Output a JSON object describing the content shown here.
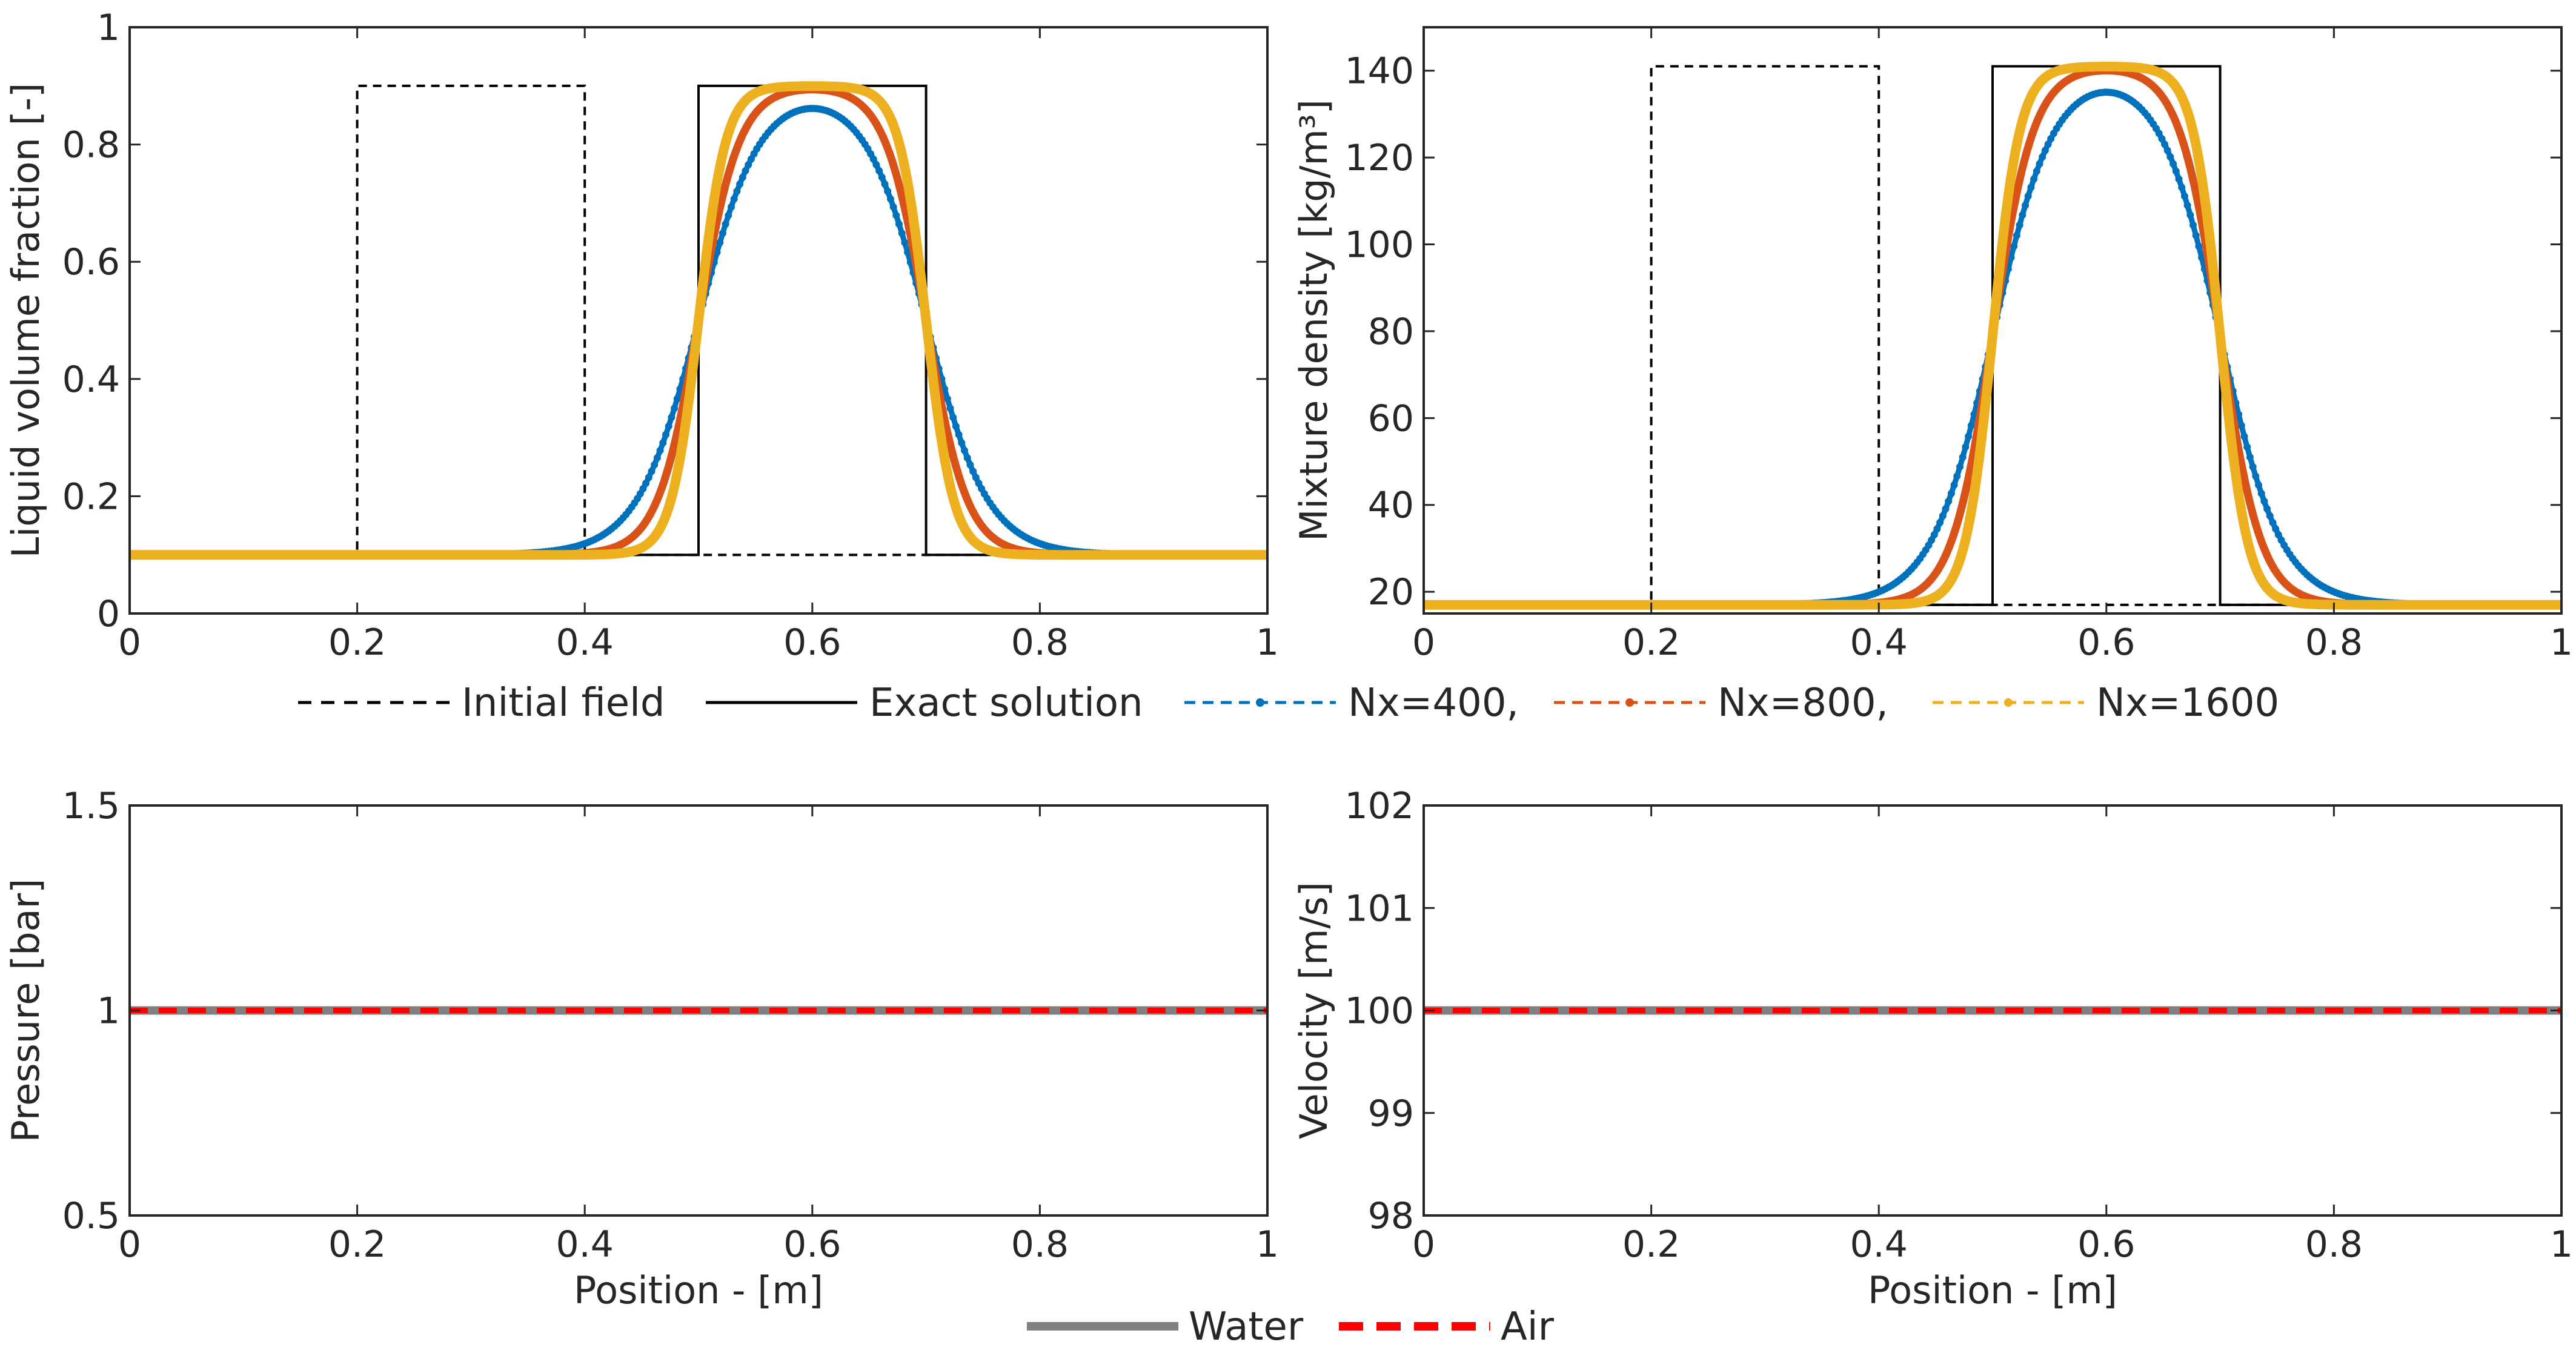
{
  "chart_data": [
    {
      "id": "alpha",
      "type": "line",
      "title": "",
      "xlabel": "",
      "ylabel": "Liquid volume fraction [-]",
      "xlim": [
        0,
        1
      ],
      "ylim": [
        0,
        1
      ],
      "xticks": [
        0,
        0.2,
        0.4,
        0.6,
        0.8,
        1
      ],
      "xtick_labels": [
        "0",
        "0.2",
        "0.4",
        "0.6",
        "0.8",
        "1"
      ],
      "yticks": [
        0,
        0.2,
        0.4,
        0.6,
        0.8,
        1
      ],
      "ytick_labels": [
        "0",
        "0.2",
        "0.4",
        "0.6",
        "0.8",
        "1"
      ],
      "low": 0.1,
      "high": 0.9,
      "series": [
        {
          "name": "Initial field",
          "kind": "step",
          "color": "#000000",
          "dash": "dashed",
          "x": [
            0,
            0.2,
            0.2,
            0.4,
            0.4,
            1
          ],
          "y": [
            0.1,
            0.1,
            0.9,
            0.9,
            0.1,
            0.1
          ]
        },
        {
          "name": "Exact solution",
          "kind": "step",
          "color": "#000000",
          "dash": "solid",
          "x": [
            0,
            0.5,
            0.5,
            0.7,
            0.7,
            1
          ],
          "y": [
            0.1,
            0.1,
            0.9,
            0.9,
            0.1,
            0.1
          ]
        },
        {
          "name": "Nx=400,",
          "kind": "smooth",
          "color": "#0072BD",
          "center_left": 0.5,
          "center_right": 0.7,
          "width": 0.027,
          "n": 400
        },
        {
          "name": "Nx=800,",
          "kind": "smooth",
          "color": "#D95319",
          "center_left": 0.5,
          "center_right": 0.7,
          "width": 0.018,
          "n": 800
        },
        {
          "name": "Nx=1600",
          "kind": "smooth",
          "color": "#EDB120",
          "center_left": 0.5,
          "center_right": 0.7,
          "width": 0.012,
          "n": 1600
        }
      ]
    },
    {
      "id": "rho",
      "type": "line",
      "title": "",
      "xlabel": "",
      "ylabel": "Mixture density [kg/m³]",
      "xlim": [
        0,
        1
      ],
      "ylim": [
        15,
        150
      ],
      "xticks": [
        0,
        0.2,
        0.4,
        0.6,
        0.8,
        1
      ],
      "xtick_labels": [
        "0",
        "0.2",
        "0.4",
        "0.6",
        "0.8",
        "1"
      ],
      "yticks": [
        20,
        40,
        60,
        80,
        100,
        120,
        140
      ],
      "ytick_labels": [
        "20",
        "40",
        "60",
        "80",
        "100",
        "120",
        "140"
      ],
      "low": 17,
      "high": 141,
      "series": [
        {
          "name": "Initial field",
          "kind": "step",
          "color": "#000000",
          "dash": "dashed",
          "x": [
            0,
            0.2,
            0.2,
            0.4,
            0.4,
            1
          ],
          "y": [
            17,
            17,
            141,
            141,
            17,
            17
          ]
        },
        {
          "name": "Exact solution",
          "kind": "step",
          "color": "#000000",
          "dash": "solid",
          "x": [
            0,
            0.5,
            0.5,
            0.7,
            0.7,
            1
          ],
          "y": [
            17,
            17,
            141,
            141,
            17,
            17
          ]
        },
        {
          "name": "Nx=400,",
          "kind": "smooth",
          "color": "#0072BD",
          "center_left": 0.5,
          "center_right": 0.7,
          "width": 0.027,
          "n": 400
        },
        {
          "name": "Nx=800,",
          "kind": "smooth",
          "color": "#D95319",
          "center_left": 0.5,
          "center_right": 0.7,
          "width": 0.018,
          "n": 800
        },
        {
          "name": "Nx=1600",
          "kind": "smooth",
          "color": "#EDB120",
          "center_left": 0.5,
          "center_right": 0.7,
          "width": 0.012,
          "n": 1600
        }
      ]
    },
    {
      "id": "pressure",
      "type": "line",
      "title": "",
      "xlabel": "Position - [m]",
      "ylabel": "Pressure [bar]",
      "xlim": [
        0,
        1
      ],
      "ylim": [
        0.5,
        1.5
      ],
      "xticks": [
        0,
        0.2,
        0.4,
        0.6,
        0.8,
        1
      ],
      "xtick_labels": [
        "0",
        "0.2",
        "0.4",
        "0.6",
        "0.8",
        "1"
      ],
      "yticks": [
        0.5,
        1,
        1.5
      ],
      "ytick_labels": [
        "0.5",
        "1",
        "1.5"
      ],
      "series": [
        {
          "name": "Water",
          "kind": "flat",
          "color": "#808080",
          "dash": "solid",
          "value": 1
        },
        {
          "name": "Air",
          "kind": "flat",
          "color": "#FF0000",
          "dash": "dashed",
          "value": 1
        }
      ]
    },
    {
      "id": "velocity",
      "type": "line",
      "title": "",
      "xlabel": "Position - [m]",
      "ylabel": "Velocity [m/s]",
      "xlim": [
        0,
        1
      ],
      "ylim": [
        98,
        102
      ],
      "xticks": [
        0,
        0.2,
        0.4,
        0.6,
        0.8,
        1
      ],
      "xtick_labels": [
        "0",
        "0.2",
        "0.4",
        "0.6",
        "0.8",
        "1"
      ],
      "yticks": [
        98,
        99,
        100,
        101,
        102
      ],
      "ytick_labels": [
        "98",
        "99",
        "100",
        "101",
        "102"
      ],
      "series": [
        {
          "name": "Water",
          "kind": "flat",
          "color": "#808080",
          "dash": "solid",
          "value": 100
        },
        {
          "name": "Air",
          "kind": "flat",
          "color": "#FF0000",
          "dash": "dashed",
          "value": 100
        }
      ]
    }
  ],
  "legend_top": {
    "placement": "between top and bottom rows",
    "entries": [
      {
        "label": "Initial field",
        "color": "#000000",
        "style": "dashed"
      },
      {
        "label": "Exact solution",
        "color": "#000000",
        "style": "solid"
      },
      {
        "label": "Nx=400,",
        "color": "#0072BD",
        "style": "dotted-marker"
      },
      {
        "label": "Nx=800,",
        "color": "#D95319",
        "style": "dotted-marker"
      },
      {
        "label": "Nx=1600",
        "color": "#EDB120",
        "style": "dotted-marker"
      }
    ]
  },
  "legend_bottom": {
    "placement": "bottom center",
    "entries": [
      {
        "label": "Water",
        "color": "#808080",
        "style": "solid"
      },
      {
        "label": "Air",
        "color": "#FF0000",
        "style": "dashed"
      }
    ]
  }
}
